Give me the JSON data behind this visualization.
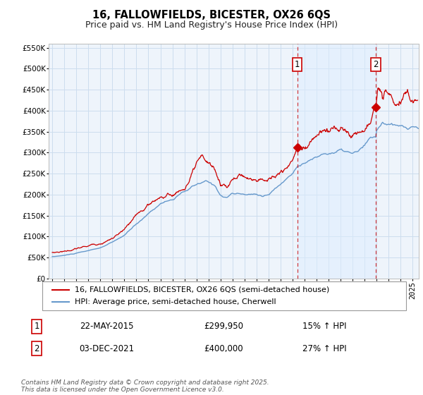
{
  "title": "16, FALLOWFIELDS, BICESTER, OX26 6QS",
  "subtitle": "Price paid vs. HM Land Registry's House Price Index (HPI)",
  "ylim": [
    0,
    560000
  ],
  "yticks": [
    0,
    50000,
    100000,
    150000,
    200000,
    250000,
    300000,
    350000,
    400000,
    450000,
    500000,
    550000
  ],
  "xlim_start": 1994.7,
  "xlim_end": 2025.5,
  "sale1_date": 2015.385,
  "sale1_price": 299950,
  "sale1_price_str": "299,950",
  "sale1_hpi_pct": "15%",
  "sale1_date_str": "22-MAY-2015",
  "sale2_date": 2021.917,
  "sale2_price": 400000,
  "sale2_price_str": "400,000",
  "sale2_hpi_pct": "27%",
  "sale2_date_str": "03-DEC-2021",
  "line_color_property": "#cc0000",
  "line_color_hpi": "#6699cc",
  "vline_color": "#cc0000",
  "shade_color": "#ddeeff",
  "grid_color": "#ccddee",
  "background_color": "#ffffff",
  "plot_bg_color": "#eef4fb",
  "legend_label_property": "16, FALLOWFIELDS, BICESTER, OX26 6QS (semi-detached house)",
  "legend_label_hpi": "HPI: Average price, semi-detached house, Cherwell",
  "footer": "Contains HM Land Registry data © Crown copyright and database right 2025.\nThis data is licensed under the Open Government Licence v3.0.",
  "title_fontsize": 10.5,
  "subtitle_fontsize": 9,
  "tick_fontsize": 7.5,
  "legend_fontsize": 8,
  "annotation_fontsize": 8.5,
  "footer_fontsize": 6.5
}
